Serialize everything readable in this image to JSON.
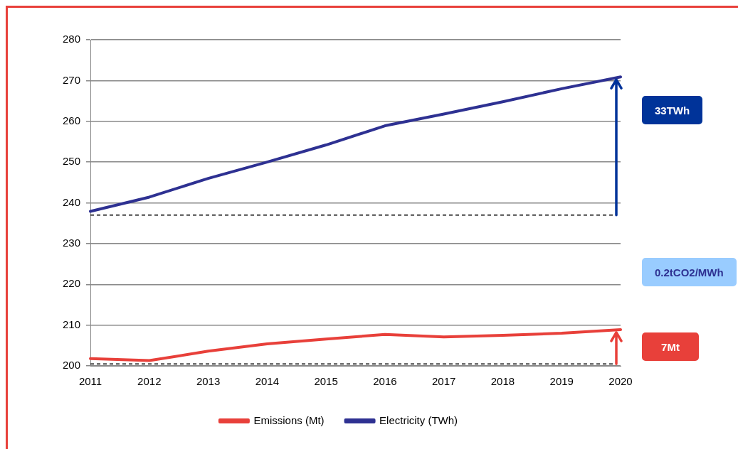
{
  "chart_data": {
    "type": "line",
    "categories": [
      "2011",
      "2012",
      "2013",
      "2014",
      "2015",
      "2016",
      "2017",
      "2018",
      "2019",
      "2020"
    ],
    "series": [
      {
        "name": "Emissions (Mt)",
        "color": "#e8403a",
        "values": [
          201.8,
          201.3,
          203.6,
          205.4,
          206.6,
          207.7,
          207.1,
          207.5,
          208.0,
          208.9
        ]
      },
      {
        "name": "Electricity (TWh)",
        "color": "#2e3192",
        "values": [
          237.9,
          241.4,
          246.0,
          250.0,
          254.2,
          258.9,
          261.8,
          264.8,
          268.0,
          270.9
        ]
      }
    ],
    "ylim": [
      200,
      280
    ],
    "yticks": [
      200,
      210,
      220,
      230,
      240,
      250,
      260,
      270,
      280
    ],
    "grid": "y",
    "legend": "bottom",
    "marker": "none",
    "line_style": "solid",
    "ref_lines": [
      {
        "axis": "y",
        "value": 200.5,
        "line_style": "dashed",
        "color": "#000000"
      },
      {
        "axis": "y",
        "value": 237,
        "line_style": "dashed",
        "color": "#000000"
      }
    ],
    "annotations": [
      "7Mt",
      "33TWh",
      "0.2tCO2/MWh"
    ]
  }
}
